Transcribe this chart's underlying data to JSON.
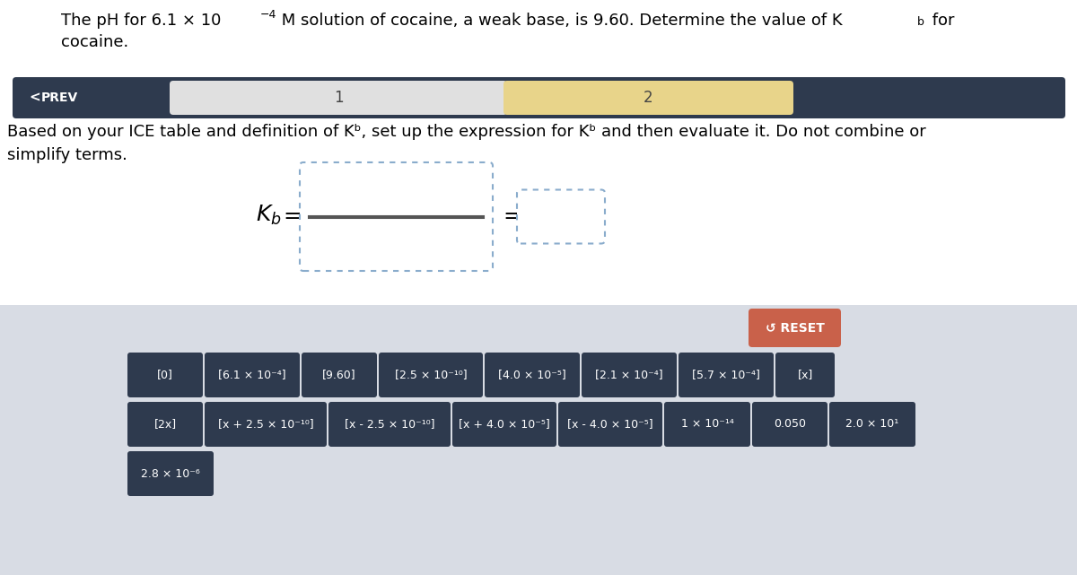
{
  "nav_bg": "#2e3a4e",
  "nav_tab1_color": "#e0e0e0",
  "nav_tab2_color": "#e8d48a",
  "bottom_bg": "#d8dce4",
  "reset_btn_color": "#c9614a",
  "reset_text": "↺ RESET",
  "box_border_color": "#8aaccc",
  "btn_color": "#2e3a4e",
  "btn_text_color": "#ffffff",
  "bg_color": "#ffffff",
  "buttons_row1": [
    "[0]",
    "[6.1 × 10⁻⁴]",
    "[9.60]",
    "[2.5 × 10⁻¹⁰]",
    "[4.0 × 10⁻⁵]",
    "[2.1 × 10⁻⁴]",
    "[5.7 × 10⁻⁴]",
    "[x]"
  ],
  "buttons_row2": [
    "[2x]",
    "[x + 2.5 × 10⁻¹⁰]",
    "[x - 2.5 × 10⁻¹⁰]",
    "[x + 4.0 × 10⁻⁵]",
    "[x - 4.0 × 10⁻⁵]",
    "1 × 10⁻¹⁴",
    "0.050",
    "2.0 × 10¹"
  ],
  "buttons_row3": [
    "2.8 × 10⁻⁶"
  ]
}
